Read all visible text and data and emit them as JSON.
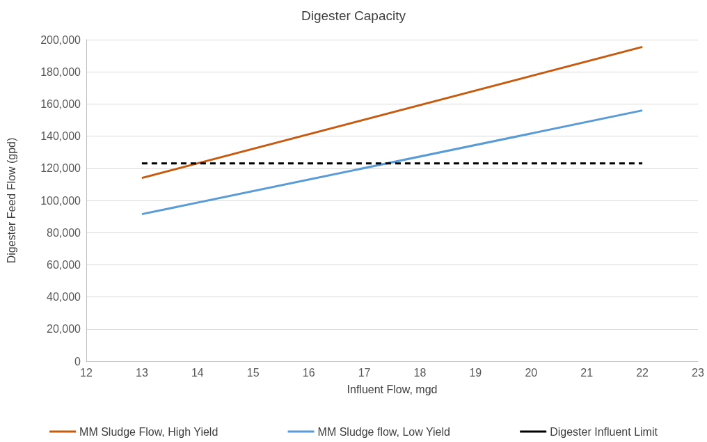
{
  "chart_data": {
    "type": "line",
    "title": "Digester Capacity",
    "xlabel": "Influent Flow, mgd",
    "ylabel": "Digester Feed Flow (gpd)",
    "xlim": [
      12,
      23
    ],
    "xticks": [
      12,
      13,
      14,
      15,
      16,
      17,
      18,
      19,
      20,
      21,
      22,
      23
    ],
    "ylim": [
      0,
      200000
    ],
    "yticks": [
      0,
      {
        "value": 20000,
        "label": "20,000"
      },
      {
        "value": 40000,
        "label": "40,000"
      },
      {
        "value": 60000,
        "label": "60,000"
      },
      {
        "value": 80000,
        "label": "80,000"
      },
      {
        "value": 100000,
        "label": "100,000"
      },
      {
        "value": 120000,
        "label": "120,000"
      },
      {
        "value": 140000,
        "label": "140,000"
      },
      {
        "value": 160000,
        "label": "160,000"
      },
      {
        "value": 180000,
        "label": "180,000"
      },
      {
        "value": 200000,
        "label": "200,000"
      }
    ],
    "x": [
      13,
      22
    ],
    "grid": "y",
    "legend": "bottom",
    "marker": "none",
    "series": [
      {
        "name": "MM Sludge Flow, High Yield",
        "color": "#c55a11",
        "values": [
          114000,
          195500
        ],
        "line_style": "solid"
      },
      {
        "name": "MM Sludge flow, Low Yield",
        "color": "#5b9bd5",
        "values": [
          91500,
          156000
        ],
        "line_style": "solid"
      },
      {
        "name": "Digester Influent Limit",
        "color": "#000000",
        "values": [
          123000,
          123000
        ],
        "line_style": "dashed"
      }
    ]
  }
}
